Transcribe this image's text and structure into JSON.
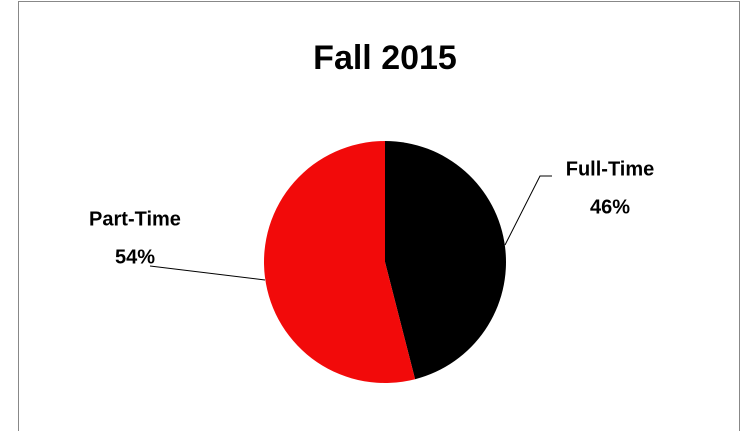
{
  "chart_data": {
    "type": "pie",
    "title": "Fall 2015",
    "categories": [
      "Full-Time",
      "Part-Time"
    ],
    "values": [
      46,
      54
    ],
    "value_labels": [
      "46%",
      "54%"
    ],
    "colors": [
      "#000000",
      "#f20a0a"
    ]
  }
}
